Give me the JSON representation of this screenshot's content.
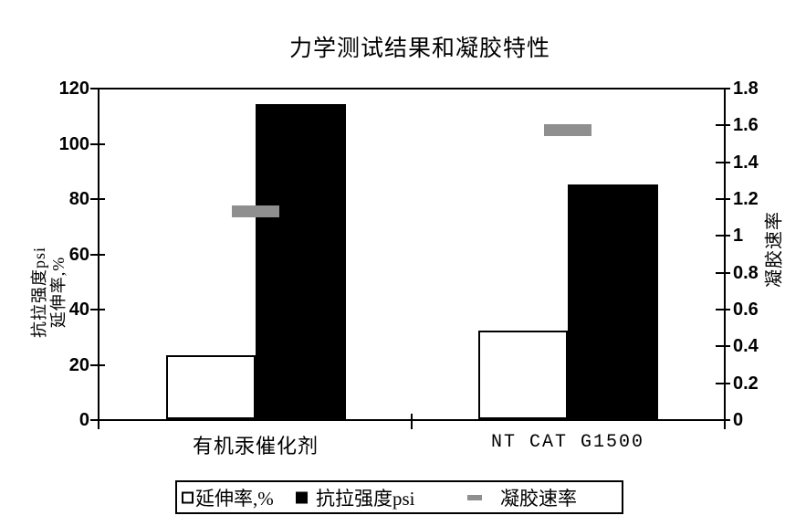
{
  "title": "力学测试结果和凝胶特性",
  "chart_data": {
    "type": "bar",
    "title": "力学测试结果和凝胶特性",
    "categories": [
      "有机汞催化剂",
      "NT CAT G1500"
    ],
    "series": [
      {
        "name": "延伸率,%",
        "type": "bar",
        "fill": "#ffffff",
        "axis": "left",
        "values": [
          23,
          32
        ]
      },
      {
        "name": "抗拉强度psi",
        "type": "bar",
        "fill": "#000000",
        "axis": "left",
        "values": [
          114,
          85
        ]
      },
      {
        "name": "凝胶速率",
        "type": "dash-marker",
        "fill": "#8f8f8f",
        "axis": "right",
        "values": [
          1.13,
          1.57
        ]
      }
    ],
    "left_axis": {
      "title_lines": [
        "抗拉强度psi",
        "延伸率,%"
      ],
      "min": 0,
      "max": 120,
      "step": 20,
      "ticks": [
        "120",
        "100",
        "80",
        "60",
        "40",
        "20",
        "0"
      ]
    },
    "right_axis": {
      "title": "凝胶速率",
      "min": 0,
      "max": 1.8,
      "step": 0.2,
      "ticks": [
        "1.8",
        "1.6",
        "1.4",
        "1.2",
        "1",
        "0.8",
        "0.6",
        "0.4",
        "0.2",
        "0"
      ]
    },
    "grid": false,
    "legend_position": "bottom"
  },
  "legend": {
    "items": [
      {
        "swatch": "white-square",
        "label": "延伸率,%"
      },
      {
        "swatch": "black-square",
        "label": "抗拉强度psi"
      },
      {
        "swatch": "gray-dash",
        "label": "凝胶速率"
      }
    ]
  },
  "colors": {
    "background": "#ffffff",
    "axis": "#000000",
    "bar_black": "#000000",
    "bar_white": "#ffffff",
    "dash_gray": "#8f8f8f"
  }
}
